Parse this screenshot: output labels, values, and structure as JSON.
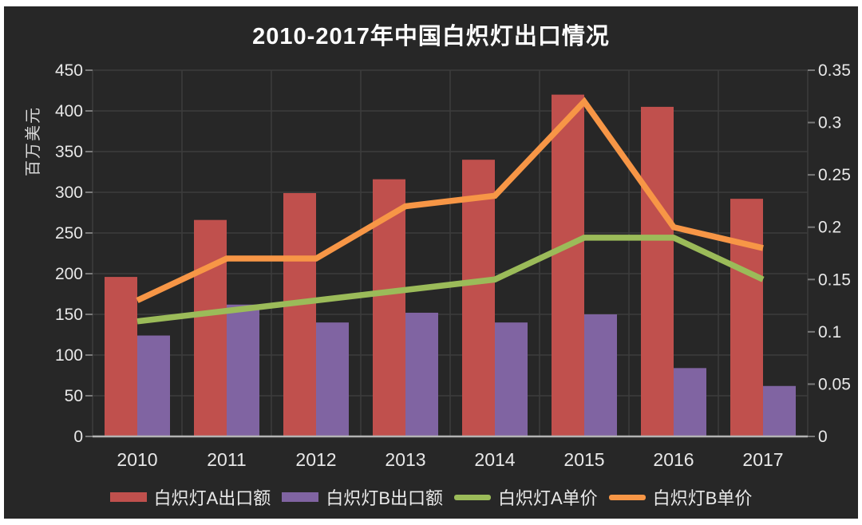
{
  "title": "2010-2017年中国白炽灯出口情况",
  "colors": {
    "frame": "#ffffff",
    "panel_background": "#272727",
    "gridline": "#3d3d3d",
    "tick_mark": "#7a7a7a",
    "axis_line": "#b3b3b3",
    "tick_text": "#e8e8e8",
    "title_text": "#ffffff",
    "bar_a": "#c0504d",
    "bar_b": "#8064a2",
    "line_a": "#9bbb59",
    "line_b": "#f79646"
  },
  "chart_data": {
    "type": "combo-bar-line",
    "title": "2010-2017年中国白炽灯出口情况",
    "categories": [
      "2010",
      "2011",
      "2012",
      "2013",
      "2014",
      "2015",
      "2016",
      "2017"
    ],
    "series": [
      {
        "name": "白炽灯A出口额",
        "kind": "bar",
        "axis": "left",
        "color": "#c0504d",
        "values": [
          196,
          266,
          299,
          316,
          340,
          420,
          405,
          292
        ]
      },
      {
        "name": "白炽灯B出口额",
        "kind": "bar",
        "axis": "left",
        "color": "#8064a2",
        "values": [
          124,
          162,
          140,
          152,
          140,
          150,
          84,
          62
        ]
      },
      {
        "name": "白炽灯A单价",
        "kind": "line",
        "axis": "right",
        "color": "#9bbb59",
        "values": [
          0.11,
          0.12,
          0.13,
          0.14,
          0.15,
          0.19,
          0.19,
          0.15
        ]
      },
      {
        "name": "白炽灯B单价",
        "kind": "line",
        "axis": "right",
        "color": "#f79646",
        "values": [
          0.13,
          0.17,
          0.17,
          0.22,
          0.23,
          0.32,
          0.2,
          0.18
        ]
      }
    ],
    "left_axis": {
      "label": "百万美元",
      "min": 0,
      "max": 450,
      "step": 50,
      "ticks": [
        "450",
        "400",
        "350",
        "300",
        "250",
        "200",
        "150",
        "100",
        "50",
        "0"
      ]
    },
    "right_axis": {
      "label": "",
      "min": 0,
      "max": 0.35,
      "step": 0.05,
      "ticks": [
        "0.35",
        "0.3",
        "0.25",
        "0.2",
        "0.15",
        "0.1",
        "0.05",
        "0"
      ]
    },
    "grid": true,
    "legend_position": "bottom"
  }
}
